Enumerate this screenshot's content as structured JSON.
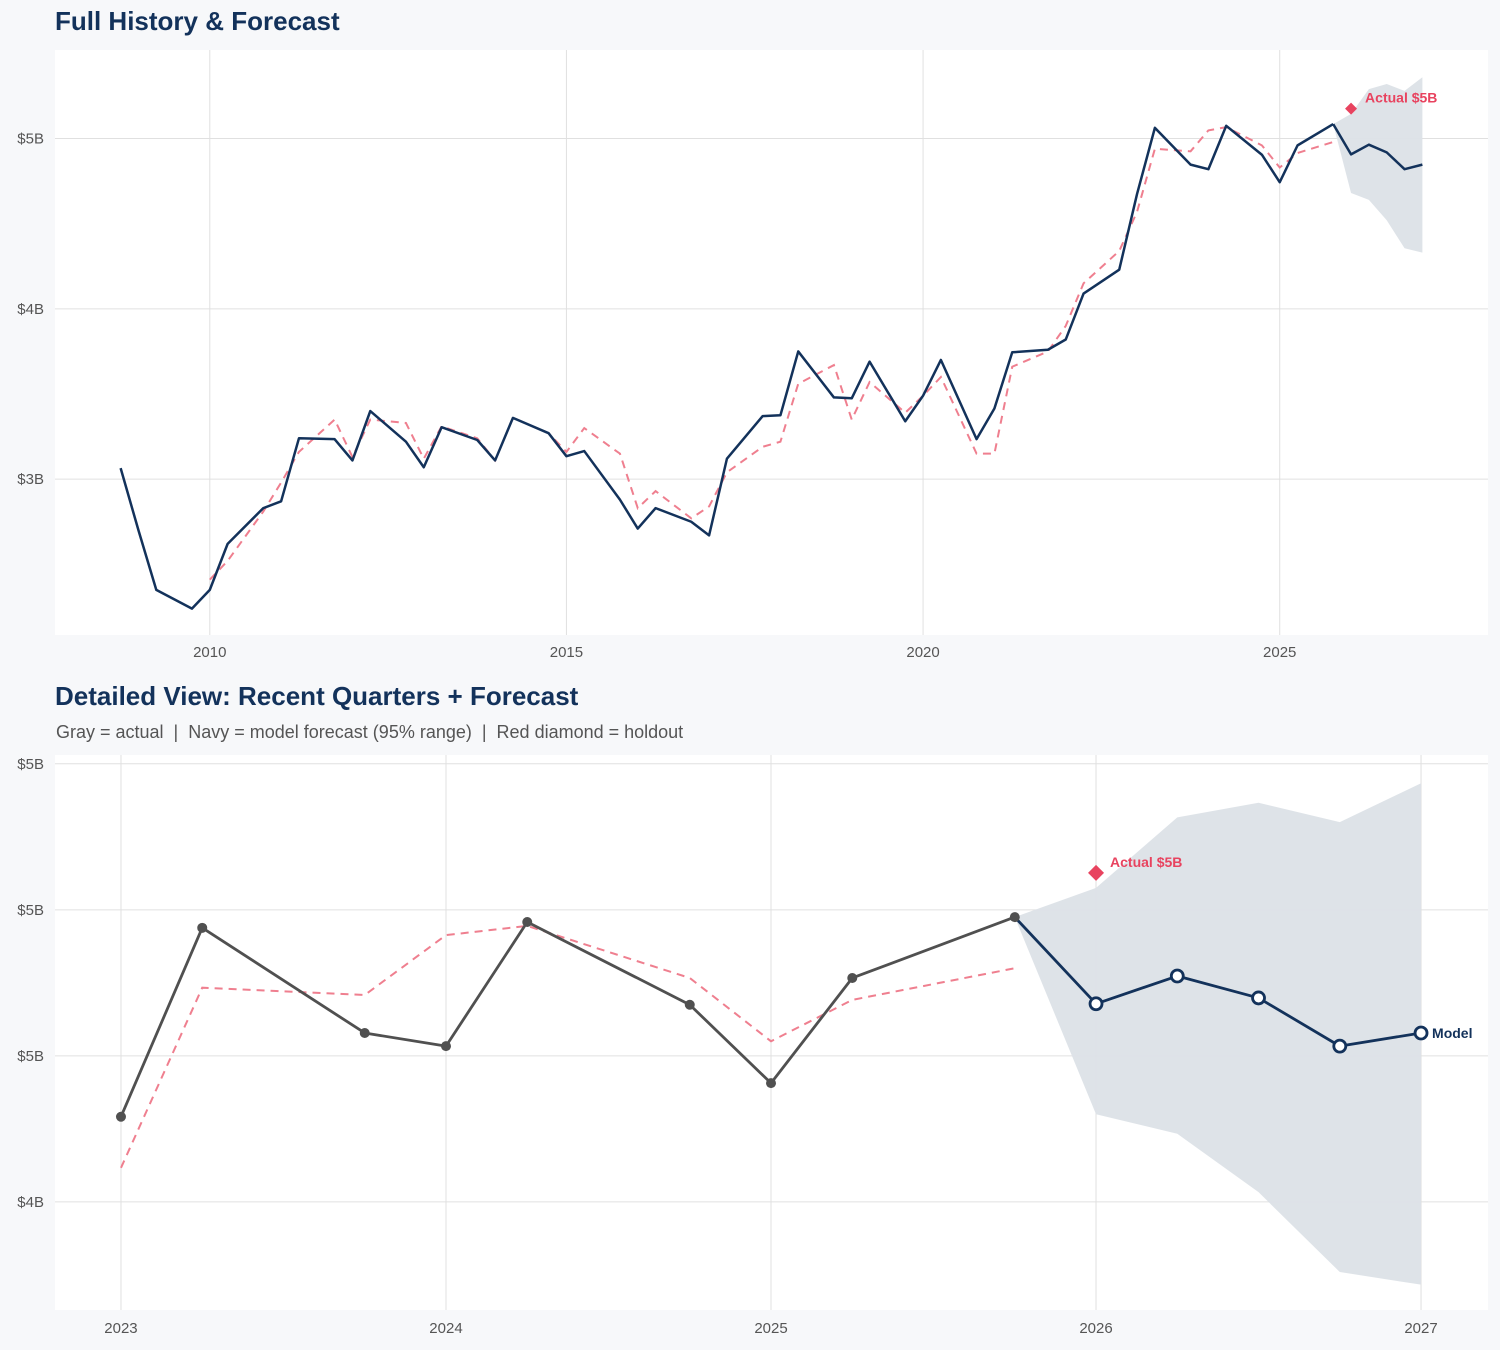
{
  "colors": {
    "navy": "#13325b",
    "red": "#e8435f",
    "red_dashed": "#ef7f8f",
    "gray": "#505050",
    "band": "#dce1e7",
    "grid": "#e0e0e0"
  },
  "chart_data": [
    {
      "type": "line",
      "title": "Full History & Forecast",
      "xlim": [
        2007.83,
        2027.92
      ],
      "ylim": [
        2.085,
        5.52
      ],
      "grid": true,
      "x_ticks": [
        2010,
        2015,
        2020,
        2025
      ],
      "x_tick_labels": [
        "2010",
        "2015",
        "2020",
        "2025"
      ],
      "y_ticks": [
        3,
        4,
        5
      ],
      "y_tick_labels": [
        "$3B",
        "$4B",
        "$5B"
      ],
      "actual": {
        "x": [
          2008.75,
          2009.0,
          2009.25,
          2009.75,
          2010.0,
          2010.25,
          2010.75,
          2011.0,
          2011.25,
          2011.75,
          2012.0,
          2012.25,
          2012.75,
          2013.0,
          2013.25,
          2013.75,
          2014.0,
          2014.25,
          2014.75,
          2015.0,
          2015.25,
          2015.75,
          2016.0,
          2016.25,
          2016.75,
          2017.0,
          2017.25,
          2017.75,
          2018.0,
          2018.25,
          2018.75,
          2019.0,
          2019.25,
          2019.75,
          2020.0,
          2020.25,
          2020.75,
          2021.0,
          2021.25,
          2021.75,
          2022.0,
          2022.25,
          2022.75,
          2023.0,
          2023.25,
          2023.75,
          2024.0,
          2024.25,
          2024.75,
          2025.0,
          2025.25,
          2025.75
        ],
        "y": [
          3.065,
          2.7,
          2.35,
          2.24,
          2.35,
          2.62,
          2.83,
          2.87,
          3.24,
          3.235,
          3.11,
          3.4,
          3.22,
          3.07,
          3.305,
          3.23,
          3.11,
          3.36,
          3.27,
          3.135,
          3.165,
          2.88,
          2.71,
          2.83,
          2.75,
          2.67,
          3.12,
          3.37,
          3.375,
          3.75,
          3.48,
          3.475,
          3.69,
          3.34,
          3.49,
          3.7,
          3.235,
          3.415,
          3.745,
          3.76,
          3.82,
          4.09,
          4.23,
          4.675,
          5.063,
          4.847,
          4.82,
          5.075,
          4.905,
          4.744,
          4.96,
          5.085
        ]
      },
      "fitted": {
        "x": [
          2010.0,
          2010.25,
          2010.75,
          2011.0,
          2011.25,
          2011.75,
          2012.0,
          2012.25,
          2012.75,
          2013.0,
          2013.25,
          2013.75,
          2014.0,
          2014.25,
          2014.75,
          2015.0,
          2015.25,
          2015.75,
          2016.0,
          2016.25,
          2016.75,
          2017.0,
          2017.25,
          2017.75,
          2018.0,
          2018.25,
          2018.75,
          2019.0,
          2019.25,
          2019.75,
          2020.0,
          2020.25,
          2020.75,
          2021.0,
          2021.25,
          2021.75,
          2022.0,
          2022.25,
          2022.75,
          2023.0,
          2023.25,
          2023.75,
          2024.0,
          2024.25,
          2024.75,
          2025.0,
          2025.25,
          2025.75
        ],
        "y": [
          2.41,
          2.52,
          2.81,
          2.98,
          3.16,
          3.35,
          3.13,
          3.35,
          3.33,
          3.12,
          3.31,
          3.24,
          3.11,
          3.36,
          3.27,
          3.16,
          3.3,
          3.15,
          2.83,
          2.93,
          2.77,
          2.84,
          3.04,
          3.19,
          3.22,
          3.56,
          3.67,
          3.35,
          3.57,
          3.39,
          3.49,
          3.6,
          3.15,
          3.15,
          3.66,
          3.75,
          3.9,
          4.15,
          4.34,
          4.57,
          4.94,
          4.925,
          5.048,
          5.067,
          4.96,
          4.83,
          4.915,
          4.98
        ]
      },
      "forecast": {
        "x": [
          2025.75,
          2026.0,
          2026.25,
          2026.5,
          2026.75,
          2027.0
        ],
        "y": [
          5.085,
          4.907,
          4.964,
          4.919,
          4.82,
          4.847
        ],
        "upper": [
          5.085,
          5.145,
          5.29,
          5.32,
          5.28,
          5.36
        ],
        "lower": [
          5.085,
          4.68,
          4.64,
          4.52,
          4.356,
          4.33
        ]
      },
      "holdout": {
        "x": 2026.0,
        "y": 5.176,
        "label": "Actual $5B"
      }
    },
    {
      "type": "line",
      "title": "Detailed View: Recent Quarters + Forecast",
      "subtitle": "Gray = actual  |  Navy = model forecast (95% range)  |  Red diamond = holdout",
      "xlim": [
        2022.797,
        2027.206
      ],
      "ylim": [
        4.278,
        5.418
      ],
      "grid": true,
      "x_ticks": [
        2023,
        2024,
        2025,
        2026,
        2027
      ],
      "x_tick_labels": [
        "2023",
        "2024",
        "2025",
        "2026",
        "2027"
      ],
      "y_ticks": [
        4.5,
        4.8,
        5.1,
        5.4
      ],
      "y_tick_labels": [
        "$4B",
        "$5B",
        "$5B",
        "$5B"
      ],
      "actual": {
        "x": [
          2023.0,
          2023.25,
          2023.75,
          2024.0,
          2024.25,
          2024.75,
          2025.0,
          2025.25,
          2025.75
        ],
        "y": [
          4.675,
          5.063,
          4.847,
          4.82,
          5.075,
          4.905,
          4.744,
          4.96,
          5.085
        ]
      },
      "fitted": {
        "x": [
          2023.0,
          2023.25,
          2023.75,
          2024.0,
          2024.25,
          2024.75,
          2025.0,
          2025.25,
          2025.75
        ],
        "y": [
          4.57,
          4.94,
          4.925,
          5.048,
          5.067,
          4.96,
          4.83,
          4.915,
          4.98
        ]
      },
      "forecast": {
        "x": [
          2025.75,
          2026.0,
          2026.25,
          2026.5,
          2026.75,
          2027.0
        ],
        "y": [
          5.085,
          4.907,
          4.964,
          4.919,
          4.82,
          4.847
        ],
        "upper": [
          5.085,
          5.145,
          5.29,
          5.32,
          5.28,
          5.36
        ],
        "lower": [
          5.085,
          4.68,
          4.64,
          4.52,
          4.356,
          4.33
        ],
        "label": "Model"
      },
      "holdout": {
        "x": 2026.0,
        "y": 5.176,
        "label": "Actual $5B"
      }
    }
  ]
}
